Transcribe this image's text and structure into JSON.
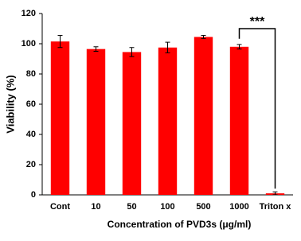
{
  "chart_data": {
    "type": "bar",
    "x_label": "Concentration of PVD3s (μg/ml)",
    "y_label": "Viability (%)",
    "categories": [
      "Cont",
      "10",
      "50",
      "100",
      "500",
      "1000",
      "Triton x"
    ],
    "values": [
      101.5,
      96.5,
      94.5,
      97.5,
      104.5,
      98,
      1
    ],
    "errors": [
      4,
      1.5,
      3,
      3.5,
      1,
      1.5,
      1
    ],
    "color": "#ff0000",
    "ylim": [
      0,
      120
    ],
    "yticks": [
      0,
      20,
      40,
      60,
      80,
      100,
      120
    ],
    "grid": false,
    "annotation": "***"
  }
}
